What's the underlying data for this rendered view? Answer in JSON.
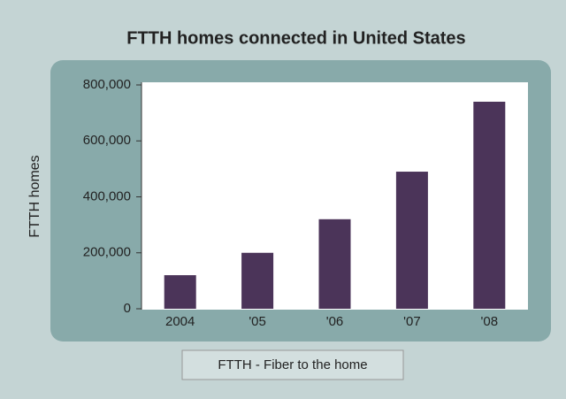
{
  "chart_data": {
    "type": "bar",
    "title": "FTTH homes connected in United States",
    "y_label": "FTTH homes",
    "categories": [
      "2004",
      "'05",
      "'06",
      "'07",
      "'08"
    ],
    "values": [
      120000,
      200000,
      320000,
      490000,
      740000
    ],
    "color": "#4b3459",
    "ylim": [
      0,
      800000
    ],
    "yticks": [
      0,
      {
        "value": 200000,
        "label": "200,000"
      },
      {
        "value": 400000,
        "label": "400,000"
      },
      {
        "value": 600000,
        "label": "600,000"
      },
      {
        "value": 800000,
        "label": "800,000"
      }
    ],
    "grid": false,
    "note": "FTTH - Fiber to the home"
  }
}
